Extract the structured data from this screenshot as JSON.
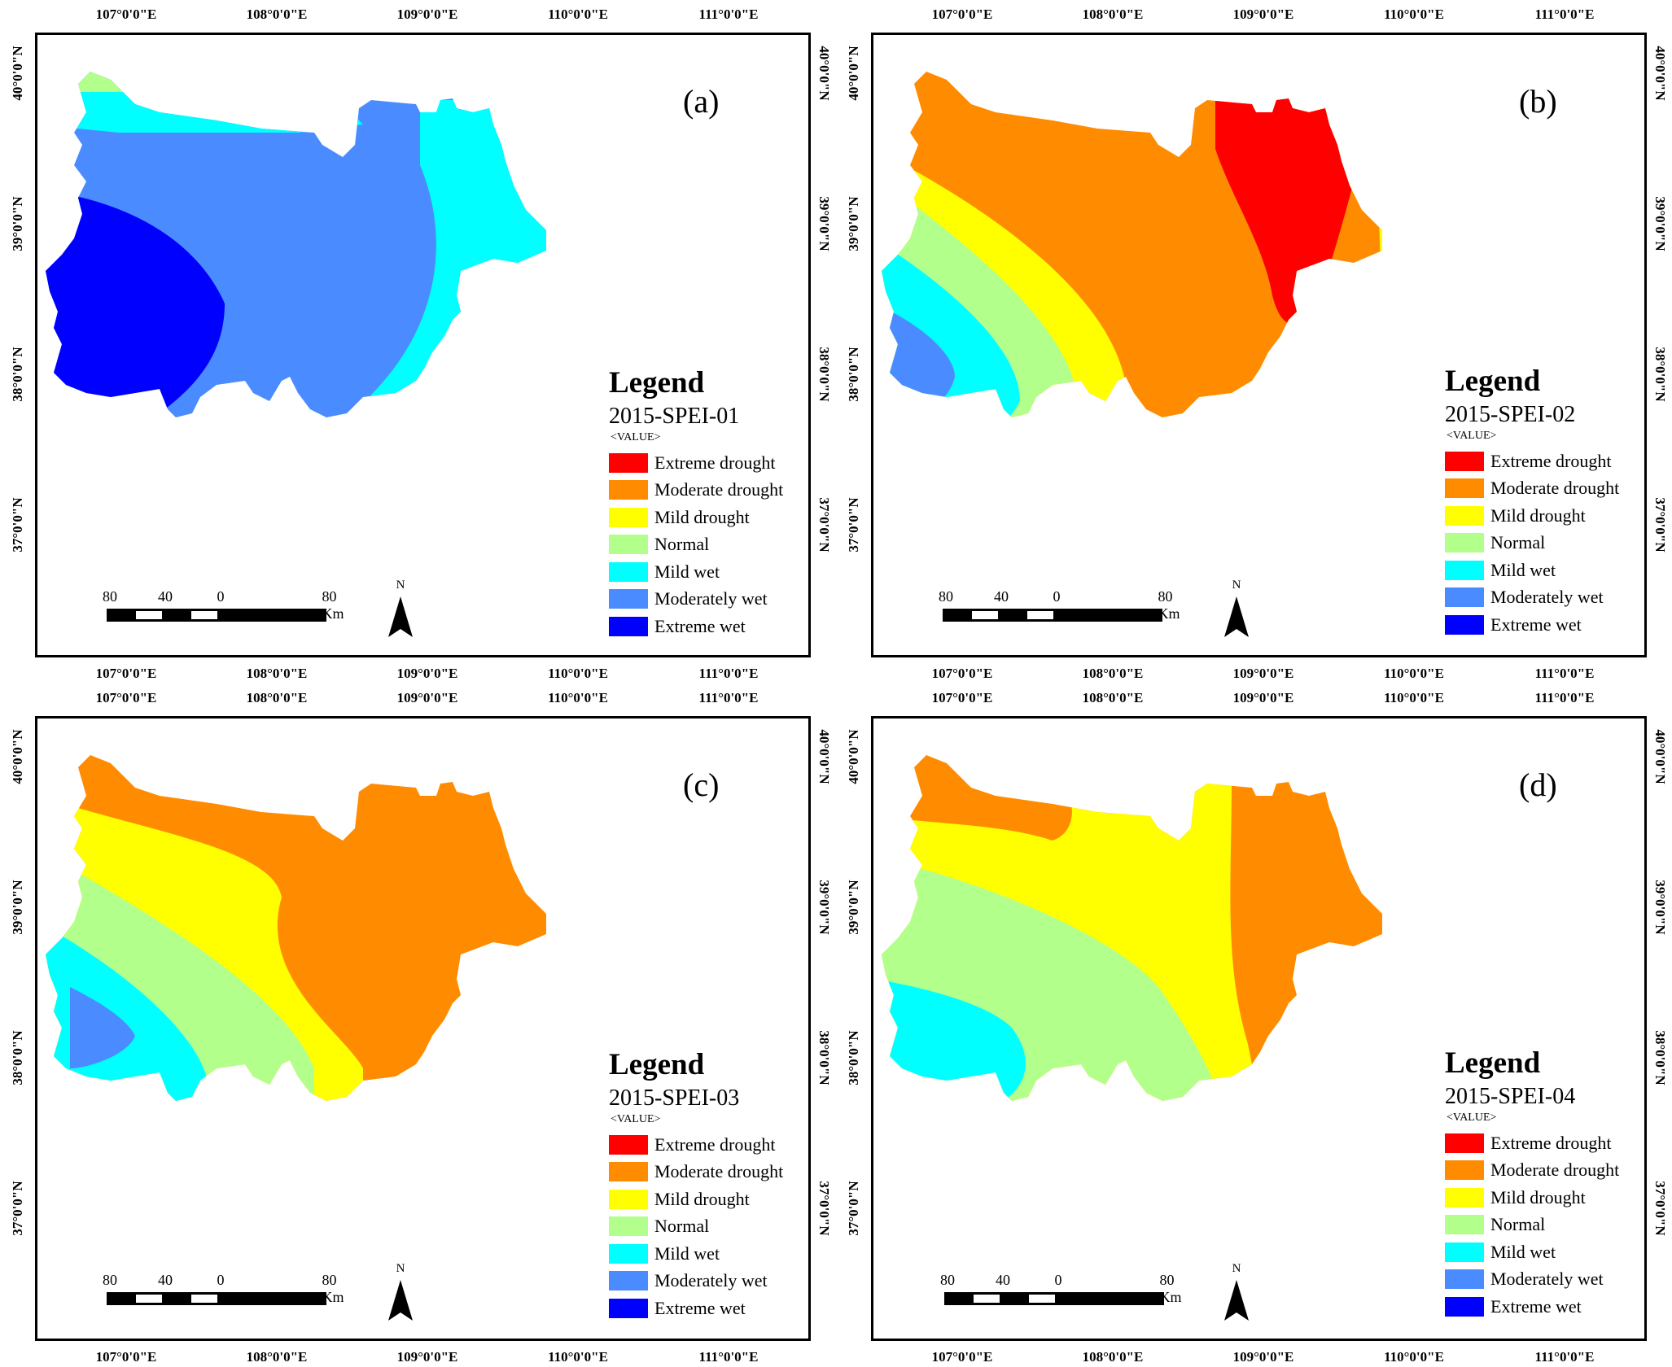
{
  "colors": {
    "extreme_drought": "#ff0000",
    "moderate_drought": "#ff8c00",
    "mild_drought": "#ffff00",
    "normal": "#b3ff8c",
    "mild_wet": "#00ffff",
    "moderately_wet": "#4a8cff",
    "extreme_wet": "#0000ff"
  },
  "legend": {
    "title": "Legend",
    "value_label": "<VALUE>",
    "items": [
      {
        "label": "Extreme drought",
        "color": "#ff0000"
      },
      {
        "label": "Moderate drought",
        "color": "#ff8c00"
      },
      {
        "label": "Mild drought",
        "color": "#ffff00"
      },
      {
        "label": "Normal",
        "color": "#b3ff8c"
      },
      {
        "label": "Mild wet",
        "color": "#00ffff"
      },
      {
        "label": "Moderately wet",
        "color": "#4a8cff"
      },
      {
        "label": "Extreme wet",
        "color": "#0000ff"
      }
    ]
  },
  "longitude_ticks": [
    "107°0'0\"E",
    "108°0'0\"E",
    "109°0'0\"E",
    "110°0'0\"E",
    "111°0'0\"E"
  ],
  "latitude_ticks": [
    "40°0'0\"N",
    "39°0'0\"N",
    "38°0'0\"N",
    "37°0'0\"N"
  ],
  "scale_bar": {
    "labels": [
      "80",
      "40",
      "0",
      "80 Km"
    ]
  },
  "north_label": "N",
  "panels": [
    {
      "label": "(a)",
      "subtitle": "2015-SPEI-01"
    },
    {
      "label": "(b)",
      "subtitle": "2015-SPEI-02"
    },
    {
      "label": "(c)",
      "subtitle": "2015-SPEI-03"
    },
    {
      "label": "(d)",
      "subtitle": "2015-SPEI-04"
    }
  ]
}
